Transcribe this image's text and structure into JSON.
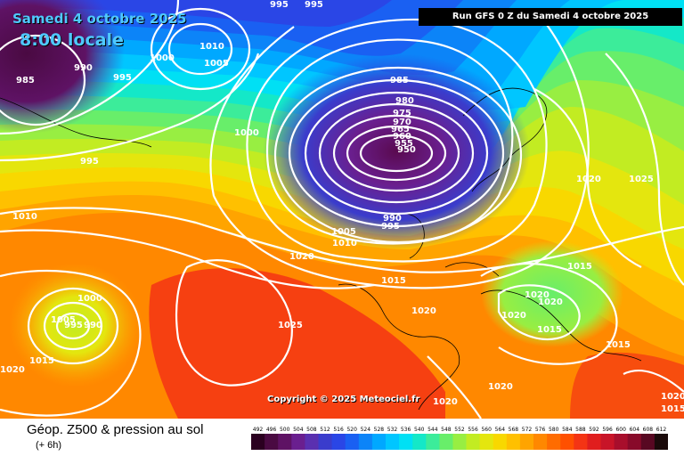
{
  "header": {
    "date_line": "Samedi 4 octobre 2025",
    "time_line": "8:00 locale",
    "run_info": "Run GFS 0 Z du Samedi 4 octobre 2025"
  },
  "copyright": "Copyright © 2025 Meteociel.fr",
  "legend": {
    "title": "Géop. Z500 & pression au sol",
    "subtitle": "(+ 6h)",
    "ticks": [
      "492",
      "496",
      "500",
      "504",
      "508",
      "512",
      "516",
      "520",
      "524",
      "528",
      "532",
      "536",
      "540",
      "544",
      "548",
      "552",
      "556",
      "560",
      "564",
      "568",
      "572",
      "576",
      "580",
      "584",
      "588",
      "592",
      "596",
      "600",
      "604",
      "608",
      "612"
    ],
    "colors": [
      "#2b0020",
      "#4a0a42",
      "#5e1264",
      "#6a1f8f",
      "#5a30b0",
      "#3a3ccc",
      "#2a46e6",
      "#1a60f2",
      "#0c84f8",
      "#00a8ff",
      "#00c6ff",
      "#00e0f4",
      "#14e8c8",
      "#3cec9a",
      "#68ee6a",
      "#98ee42",
      "#c2ec22",
      "#e4e60e",
      "#f8d800",
      "#ffc000",
      "#ffa400",
      "#ff8800",
      "#ff6c00",
      "#ff5000",
      "#f43414",
      "#e01e1e",
      "#c81428",
      "#a80e2c",
      "#880a2a",
      "#580822",
      "#1a0a0a"
    ]
  },
  "pressure_labels": [
    {
      "text": "995"
    },
    {
      "text": "995"
    },
    {
      "text": "1010"
    },
    {
      "text": "1005"
    },
    {
      "text": "1000"
    },
    {
      "text": "990"
    },
    {
      "text": "985"
    },
    {
      "text": "995"
    },
    {
      "text": "1000"
    },
    {
      "text": "995"
    },
    {
      "text": "985"
    },
    {
      "text": "980"
    },
    {
      "text": "975"
    },
    {
      "text": "970"
    },
    {
      "text": "965"
    },
    {
      "text": "960"
    },
    {
      "text": "955"
    },
    {
      "text": "950"
    },
    {
      "text": "990"
    },
    {
      "text": "995"
    },
    {
      "text": "1005"
    },
    {
      "text": "1010"
    },
    {
      "text": "1010"
    },
    {
      "text": "1020"
    },
    {
      "text": "1015"
    },
    {
      "text": "1020"
    },
    {
      "text": "1000"
    },
    {
      "text": "1005"
    },
    {
      "text": "995"
    },
    {
      "text": "990"
    },
    {
      "text": "1015"
    },
    {
      "text": "1020"
    },
    {
      "text": "1025"
    },
    {
      "text": "1020"
    },
    {
      "text": "1020"
    },
    {
      "text": "1020"
    },
    {
      "text": "1020"
    },
    {
      "text": "1015"
    },
    {
      "text": "1015"
    },
    {
      "text": "1020"
    },
    {
      "text": "1020"
    },
    {
      "text": "1025"
    },
    {
      "text": "1015"
    },
    {
      "text": "1020"
    },
    {
      "text": "1015"
    }
  ]
}
